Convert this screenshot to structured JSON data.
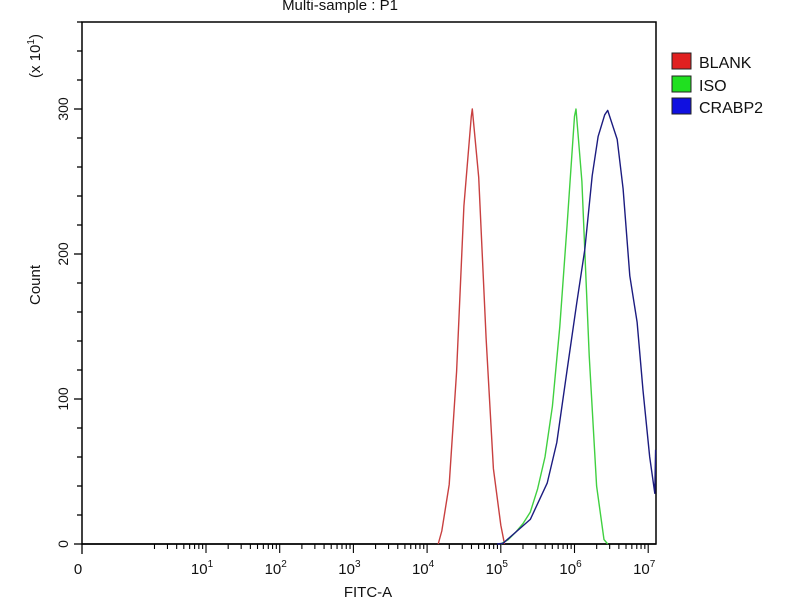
{
  "chart_data": {
    "type": "line",
    "title": "Multi-sample : P1",
    "xlabel": "FITC-A",
    "ylabel": "Count",
    "y_multiplier_label": "(x 10",
    "y_multiplier_exp": "1",
    "x_scale": "log",
    "x_tick_labels": [
      {
        "value": 0,
        "base": "0",
        "exp": ""
      },
      {
        "value": 10,
        "base": "10",
        "exp": "1"
      },
      {
        "value": 100,
        "base": "10",
        "exp": "2"
      },
      {
        "value": 1000,
        "base": "10",
        "exp": "3"
      },
      {
        "value": 10000,
        "base": "10",
        "exp": "4"
      },
      {
        "value": 100000,
        "base": "10",
        "exp": "5"
      },
      {
        "value": 1000000,
        "base": "10",
        "exp": "6"
      },
      {
        "value": 10000000,
        "base": "10",
        "exp": "7"
      }
    ],
    "y_ticks": [
      0,
      100,
      200,
      300
    ],
    "ylim": [
      0,
      360
    ],
    "grid": false,
    "legend_position": "right",
    "series": [
      {
        "name": "BLANK",
        "color": "#e02020",
        "line_color": "#c84040",
        "x": [
          14125,
          15850,
          19950,
          25120,
          31620,
          39810,
          41000,
          50120,
          63100,
          79430,
          100000,
          112200
        ],
        "y": [
          0,
          9,
          41,
          119,
          233,
          295,
          300,
          253,
          142,
          52,
          13,
          0
        ]
      },
      {
        "name": "ISO",
        "color": "#20e020",
        "line_color": "#40d040",
        "x": [
          100000,
          125900,
          158500,
          199500,
          251200,
          316200,
          398100,
          501200,
          631000,
          794300,
          1000000,
          1047000,
          1259000,
          1585000,
          1995000,
          2512000,
          2818000
        ],
        "y": [
          0,
          3,
          8,
          14,
          22,
          38,
          60,
          95,
          150,
          220,
          295,
          300,
          250,
          130,
          40,
          3,
          0
        ]
      },
      {
        "name": "CRABP2",
        "color": "#1010e0",
        "line_color": "#1c1c80",
        "x": [
          89000,
          107200,
          251200,
          426600,
          575400,
          794300,
          1072000,
          1380000,
          1738000,
          2089000,
          2570000,
          2818000,
          3802000,
          4571000,
          5623000,
          7079000,
          8511000,
          10470000,
          12300000,
          12590000
        ],
        "y": [
          0,
          0.5,
          17,
          42,
          70,
          120,
          166,
          203,
          254,
          281,
          296,
          299,
          279,
          245,
          185,
          153,
          106,
          60,
          35,
          65
        ]
      }
    ]
  }
}
